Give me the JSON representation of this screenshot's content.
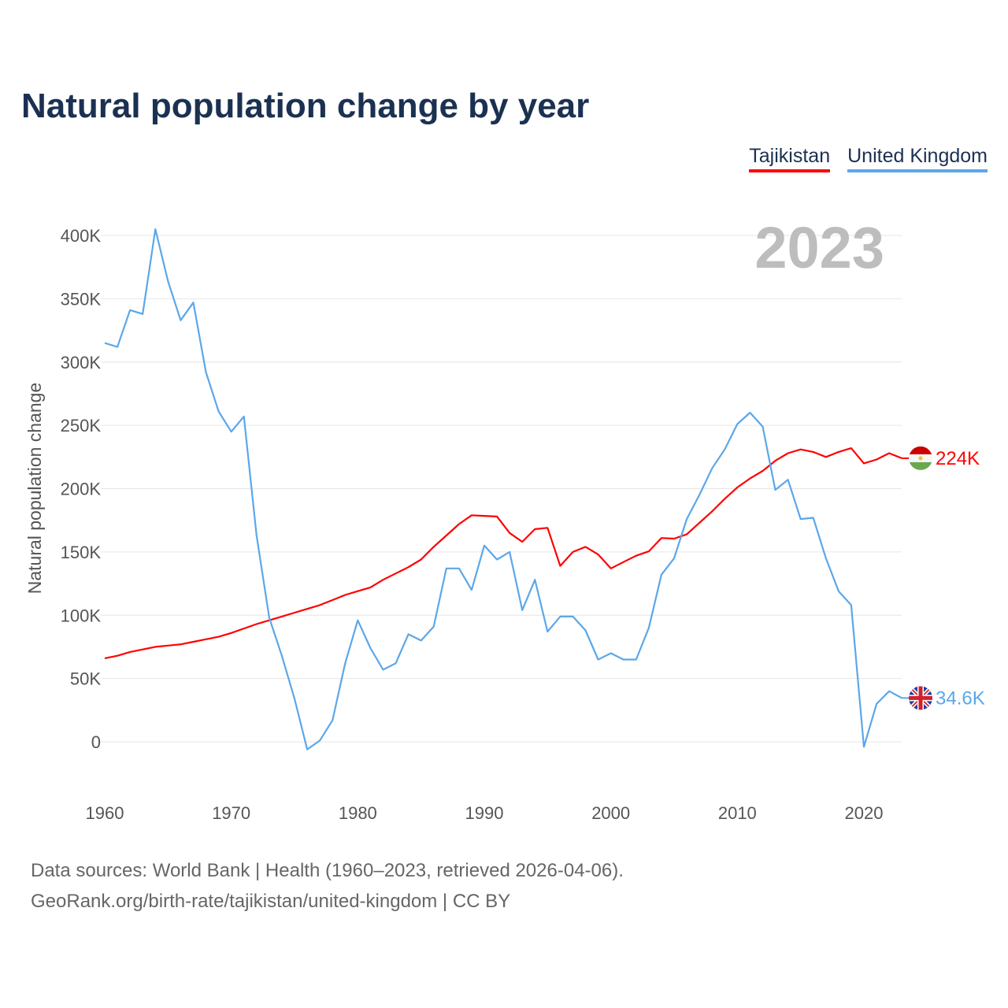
{
  "title": "Natural population change by year",
  "legend": [
    {
      "label": "Tajikistan",
      "color": "#ff0000"
    },
    {
      "label": "United Kingdom",
      "color": "#5ba7ea"
    }
  ],
  "footer": {
    "line1": "Data sources: World Bank | Health (1960–2023, retrieved 2026-04-06).",
    "line2": "GeoRank.org/birth-rate/tajikistan/united-kingdom | CC BY"
  },
  "chart_data": {
    "type": "line",
    "title": "Natural population change by year",
    "year_label": "2023",
    "xlabel": "",
    "ylabel": "Natural population change",
    "xlim": [
      1960,
      2023
    ],
    "ylim": [
      -25000,
      400000
    ],
    "grid": true,
    "legend_placement": "top-right",
    "x_ticks": [
      1960,
      1970,
      1980,
      1990,
      2000,
      2010,
      2020
    ],
    "y_ticks": [
      {
        "value": 0,
        "label": "0"
      },
      {
        "value": 50000,
        "label": "50K"
      },
      {
        "value": 100000,
        "label": "100K"
      },
      {
        "value": 150000,
        "label": "150K"
      },
      {
        "value": 200000,
        "label": "200K"
      },
      {
        "value": 250000,
        "label": "250K"
      },
      {
        "value": 300000,
        "label": "300K"
      },
      {
        "value": 350000,
        "label": "350K"
      },
      {
        "value": 400000,
        "label": "400K"
      }
    ],
    "x": [
      1960,
      1961,
      1962,
      1963,
      1964,
      1965,
      1966,
      1967,
      1968,
      1969,
      1970,
      1971,
      1972,
      1973,
      1974,
      1975,
      1976,
      1977,
      1978,
      1979,
      1980,
      1981,
      1982,
      1983,
      1984,
      1985,
      1986,
      1987,
      1988,
      1989,
      1990,
      1991,
      1992,
      1993,
      1994,
      1995,
      1996,
      1997,
      1998,
      1999,
      2000,
      2001,
      2002,
      2003,
      2004,
      2005,
      2006,
      2007,
      2008,
      2009,
      2010,
      2011,
      2012,
      2013,
      2014,
      2015,
      2016,
      2017,
      2018,
      2019,
      2020,
      2021,
      2022,
      2023
    ],
    "series": [
      {
        "name": "Tajikistan",
        "color": "#ff0000",
        "end_label": "224K",
        "values": [
          66000,
          68000,
          71000,
          73000,
          75000,
          76000,
          77000,
          79000,
          81000,
          83000,
          86000,
          89500,
          93000,
          96000,
          99000,
          102000,
          105000,
          108000,
          112000,
          116000,
          119000,
          122000,
          128000,
          133000,
          138000,
          144000,
          154000,
          163000,
          172000,
          179000,
          178500,
          178000,
          165000,
          158000,
          168000,
          169000,
          139000,
          150000,
          154000,
          148000,
          137000,
          142000,
          147000,
          150500,
          161000,
          160500,
          164000,
          173000,
          182000,
          192000,
          201000,
          208000,
          214000,
          222000,
          228000,
          231000,
          229000,
          225000,
          229000,
          232000,
          220000,
          223000,
          228000,
          224000
        ]
      },
      {
        "name": "United Kingdom",
        "color": "#5ba7ea",
        "end_label": "34.6K",
        "values": [
          315000,
          312000,
          341000,
          338000,
          405000,
          364000,
          333000,
          347000,
          292000,
          261000,
          245000,
          257000,
          163000,
          98000,
          68000,
          34000,
          -6000,
          1000,
          17000,
          62000,
          96000,
          74000,
          57000,
          62000,
          85000,
          80000,
          91000,
          137000,
          137000,
          120000,
          155000,
          144000,
          150000,
          104000,
          128000,
          87000,
          99000,
          99000,
          88000,
          65000,
          70000,
          65000,
          65000,
          90000,
          132000,
          145000,
          176000,
          195000,
          216000,
          231000,
          251000,
          260000,
          249000,
          199000,
          207000,
          176000,
          177000,
          145000,
          119000,
          108000,
          -4000,
          30000,
          40000,
          34600
        ]
      }
    ]
  }
}
